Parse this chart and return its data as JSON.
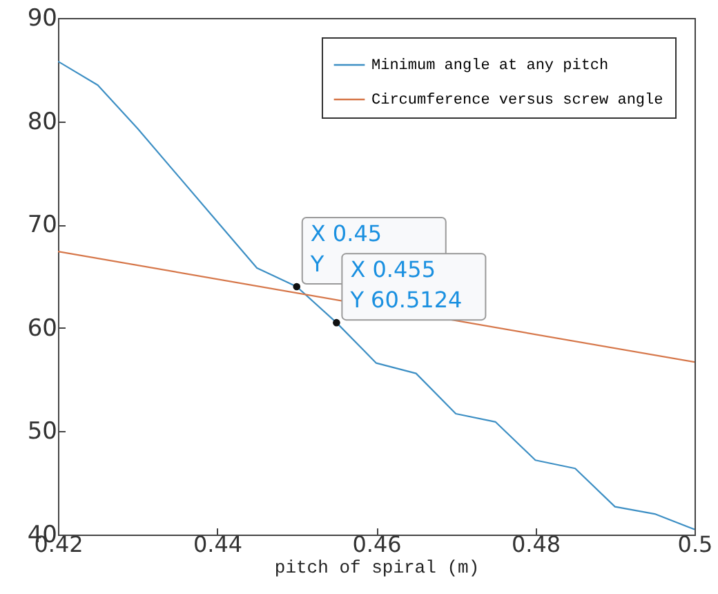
{
  "chart_data": {
    "type": "line",
    "xlabel": "pitch of spiral (m)",
    "xlim": [
      0.42,
      0.5
    ],
    "xticks": [
      0.42,
      0.44,
      0.46,
      0.48,
      0.5
    ],
    "ylim": [
      40,
      90
    ],
    "yticks": [
      40,
      50,
      60,
      70,
      80,
      90
    ],
    "grid": false,
    "legend": "top right",
    "line_style": "solid",
    "series": [
      {
        "name": "Minimum angle at any pitch",
        "color": "#3d8fc4",
        "x": [
          0.42,
          0.425,
          0.43,
          0.435,
          0.44,
          0.445,
          0.45,
          0.455,
          0.46,
          0.465,
          0.47,
          0.475,
          0.48,
          0.485,
          0.49,
          0.495,
          0.5
        ],
        "values": [
          85.8,
          83.5,
          79.3,
          74.8,
          70.3,
          65.8,
          64.0,
          60.5124,
          56.6,
          55.6,
          51.7,
          50.9,
          47.2,
          46.4,
          42.7,
          42.0,
          40.5
        ]
      },
      {
        "name": "Circumference versus screw angle",
        "color": "#d6774a",
        "x": [
          0.42,
          0.5
        ],
        "values": [
          67.4,
          56.7
        ]
      }
    ],
    "annotations": [
      {
        "text": "X 0.45\nY",
        "x": 0.45,
        "y": 64.0
      },
      {
        "text": "X 0.455\nY 60.5124",
        "x": 0.455,
        "y": 60.5124
      }
    ]
  }
}
